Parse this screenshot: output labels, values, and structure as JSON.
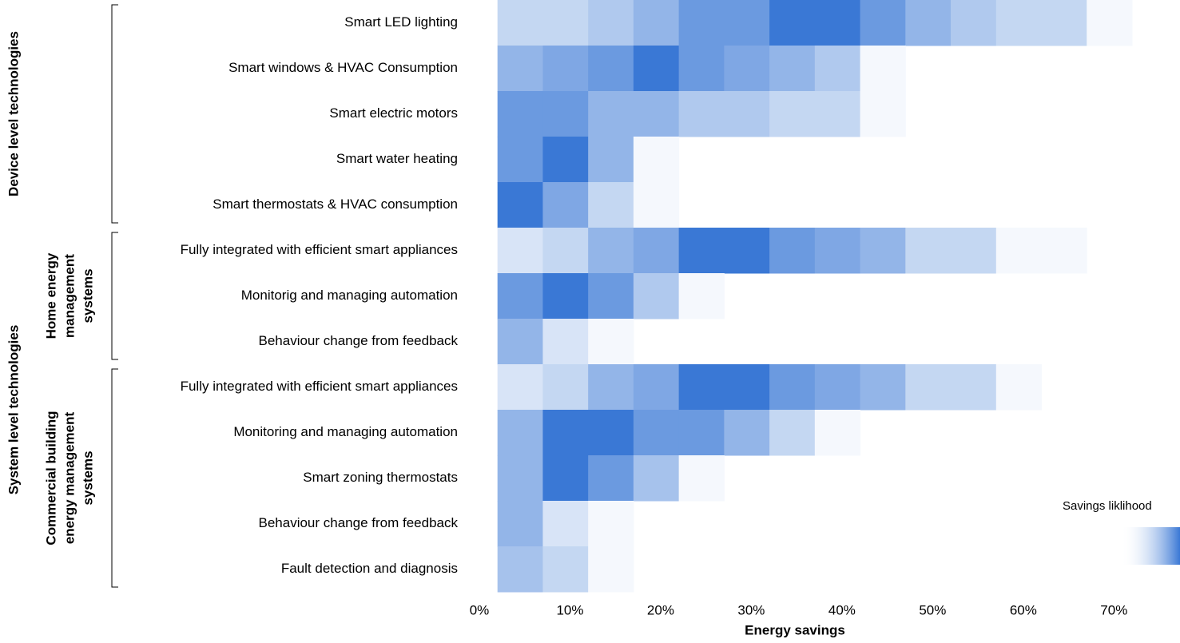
{
  "chart_data": {
    "type": "heatmap",
    "groups": [
      {
        "label": "Device level technologies",
        "rows": [
          "Smart LED lighting",
          "Smart windows & HVAC Consumption",
          "Smart electric motors",
          "Smart water heating",
          "Smart thermostats & HVAC consumption"
        ]
      },
      {
        "label": "System level technologies",
        "subgroups": [
          {
            "label": [
              "Home energy",
              "management",
              "systems"
            ],
            "rows": [
              "Fully integrated with efficient smart appliances",
              "Monitorig and managing automation",
              "Behaviour change from feedback"
            ]
          },
          {
            "label": [
              "Commercial building",
              "energy management",
              "systems"
            ],
            "rows": [
              "Fully integrated with efficient smart appliances",
              "Monitoring and managing automation",
              "Smart zoning thermostats",
              "Behaviour change from feedback",
              "Fault detection and diagnosis"
            ]
          }
        ]
      }
    ],
    "bins": [
      2,
      7,
      12,
      17,
      22,
      27,
      32,
      37,
      42,
      47,
      52,
      57,
      62,
      67,
      72
    ],
    "values": [
      [
        0.3,
        0.3,
        0.4,
        0.55,
        0.75,
        0.75,
        1,
        1,
        0.75,
        0.55,
        0.4,
        0.3,
        0.3,
        0.05
      ],
      [
        0.55,
        0.65,
        0.75,
        1,
        0.75,
        0.65,
        0.55,
        0.4,
        0.05,
        null,
        null,
        null,
        null,
        null
      ],
      [
        0.75,
        0.75,
        0.55,
        0.55,
        0.4,
        0.4,
        0.3,
        0.3,
        0.05,
        null,
        null,
        null,
        null,
        null
      ],
      [
        0.75,
        1,
        0.55,
        0.05,
        null,
        null,
        null,
        null,
        null,
        null,
        null,
        null,
        null,
        null
      ],
      [
        1,
        0.65,
        0.3,
        0.05,
        null,
        null,
        null,
        null,
        null,
        null,
        null,
        null,
        null,
        null
      ],
      [
        0.2,
        0.3,
        0.55,
        0.65,
        1,
        1,
        0.75,
        0.65,
        0.55,
        0.3,
        0.3,
        0.05,
        0.05,
        null
      ],
      [
        0.75,
        1,
        0.75,
        0.4,
        0.05,
        null,
        null,
        null,
        null,
        null,
        null,
        null,
        null,
        null
      ],
      [
        0.55,
        0.2,
        0.05,
        null,
        null,
        null,
        null,
        null,
        null,
        null,
        null,
        null,
        null,
        null
      ],
      [
        0.2,
        0.3,
        0.55,
        0.65,
        1,
        1,
        0.75,
        0.65,
        0.55,
        0.3,
        0.3,
        0.05,
        null,
        null
      ],
      [
        0.55,
        1,
        1,
        0.75,
        0.75,
        0.55,
        0.3,
        0.05,
        null,
        null,
        null,
        null,
        null,
        null
      ],
      [
        0.55,
        1,
        0.75,
        0.45,
        0.05,
        null,
        null,
        null,
        null,
        null,
        null,
        null,
        null,
        null
      ],
      [
        0.55,
        0.2,
        0.05,
        null,
        null,
        null,
        null,
        null,
        null,
        null,
        null,
        null,
        null,
        null
      ],
      [
        0.45,
        0.3,
        0.05,
        null,
        null,
        null,
        null,
        null,
        null,
        null,
        null,
        null,
        null,
        null
      ]
    ],
    "color_scale": [
      "#ffffff",
      "#3a78d5"
    ],
    "colorbar_label": "Savings liklihood",
    "x_label": "Energy savings",
    "xlim": [
      0,
      72
    ],
    "xticks": [
      {
        "value": 0,
        "label": "0%"
      },
      {
        "value": 10,
        "label": "10%"
      },
      {
        "value": 20,
        "label": "20%"
      },
      {
        "value": 30,
        "label": "30%"
      },
      {
        "value": 40,
        "label": "40%"
      },
      {
        "value": 50,
        "label": "50%"
      },
      {
        "value": 60,
        "label": "60%"
      },
      {
        "value": 70,
        "label": "70%"
      }
    ]
  }
}
